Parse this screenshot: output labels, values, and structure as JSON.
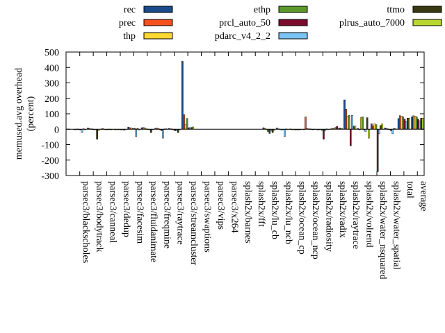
{
  "chart_data": {
    "type": "bar",
    "ylabel_line1": "memused.avg overhead",
    "ylabel_line2": "(percent)",
    "ylim": [
      -300,
      500
    ],
    "yticks": [
      -300,
      -200,
      -100,
      0,
      100,
      200,
      300,
      400,
      500
    ],
    "ytick_labels": [
      "-300",
      "-200",
      "-100",
      "0",
      "100",
      "200",
      "300",
      "400",
      "500"
    ],
    "categories": [
      "parsec3/blackscholes",
      "parsec3/bodytrack",
      "parsec3/canneal",
      "parsec3/dedup",
      "parsec3/facesim",
      "parsec3/fluidanimate",
      "parsec3/freqmine",
      "parsec3/raytrace",
      "parsec3/streamcluster",
      "parsec3/swaptions",
      "parsec3/vips",
      "parsec3/x264",
      "splash2x/barnes",
      "splash2x/fft",
      "splash2x/lu_cb",
      "splash2x/lu_ncb",
      "splash2x/ocean_cp",
      "splash2x/ocean_ncp",
      "splash2x/radiosity",
      "splash2x/radix",
      "splash2x/raytrace",
      "splash2x/volrend",
      "splash2x/water_nsquared",
      "splash2x/water_spatial",
      "total",
      "average"
    ],
    "legend_placement": "top",
    "series": [
      {
        "name": "rec",
        "color": "#1a4a8a",
        "values": [
          -2,
          8,
          2,
          -1,
          14,
          10,
          6,
          5,
          440,
          null,
          null,
          null,
          null,
          null,
          10,
          8,
          2,
          0,
          -5,
          3,
          190,
          5,
          35,
          8,
          70,
          80
        ]
      },
      {
        "name": "prec",
        "color": "#f4511e",
        "values": [
          -3,
          5,
          4,
          -2,
          10,
          11,
          7,
          3,
          95,
          null,
          null,
          null,
          null,
          null,
          5,
          3,
          -3,
          80,
          -3,
          6,
          130,
          0,
          20,
          5,
          88,
          88
        ]
      },
      {
        "name": "thp",
        "color": "#fdd835",
        "values": [
          2,
          3,
          0,
          0,
          8,
          9,
          5,
          2,
          30,
          null,
          null,
          null,
          null,
          null,
          -2,
          -2,
          -1,
          5,
          -4,
          4,
          85,
          75,
          35,
          2,
          85,
          85
        ]
      },
      {
        "name": "ethp",
        "color": "#5b9a2a",
        "values": [
          -1,
          2,
          -1,
          -3,
          4,
          3,
          -3,
          -5,
          70,
          null,
          null,
          null,
          null,
          null,
          -15,
          -5,
          -5,
          3,
          -8,
          12,
          90,
          80,
          30,
          0,
          80,
          80
        ]
      },
      {
        "name": "prcl_auto_50",
        "color": "#7d0b2d",
        "values": [
          -5,
          0,
          -2,
          -4,
          6,
          1,
          -10,
          -10,
          10,
          null,
          null,
          null,
          null,
          null,
          -28,
          -1,
          -3,
          2,
          -65,
          18,
          -108,
          -5,
          -275,
          -10,
          65,
          65
        ]
      },
      {
        "name": "pdarc_v4_2_2",
        "color": "#7ac4f5",
        "values": [
          -22,
          -4,
          1,
          0,
          -48,
          -5,
          -58,
          -10,
          10,
          null,
          null,
          null,
          null,
          null,
          -12,
          -48,
          -5,
          1,
          -10,
          5,
          90,
          -15,
          -30,
          -30,
          50,
          55
        ]
      },
      {
        "name": "ttmo",
        "color": "#3a3a12",
        "values": [
          3,
          -65,
          -3,
          -6,
          5,
          -22,
          2,
          -22,
          12,
          null,
          null,
          null,
          null,
          null,
          -22,
          2,
          -2,
          0,
          2,
          8,
          20,
          75,
          25,
          5,
          72,
          72
        ]
      },
      {
        "name": "plrus_auto_7000",
        "color": "#b7d630",
        "values": [
          -3,
          -10,
          -2,
          -2,
          -5,
          -2,
          3,
          -4,
          15,
          null,
          null,
          null,
          null,
          null,
          -8,
          -3,
          -2,
          1,
          -3,
          5,
          20,
          -58,
          35,
          3,
          72,
          72
        ]
      }
    ]
  }
}
